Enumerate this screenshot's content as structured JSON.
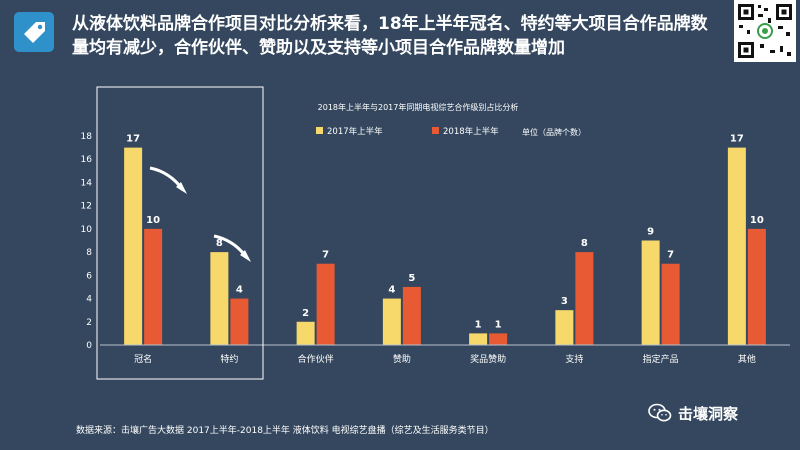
{
  "headline": "从液体饮料品牌合作项目对比分析来看，18年上半年冠名、特约等大项目合作品牌数量均有减少，合作伙伴、赞助以及支持等小项目合作品牌数量增加",
  "source": "数据来源：击壤广告大数据 2017上半年-2018上半年 液体饮料 电视综艺盘播（综艺及生活服务类节目）",
  "brand": {
    "name": "击壤洞察",
    "icon": "wechat-icon"
  },
  "colors": {
    "background": "#34475e",
    "series_2017": "#f6d86b",
    "series_2018": "#e85a33"
  },
  "chart_data": {
    "type": "bar",
    "title": "2018年上半年与2017年同期电视综艺合作级别占比分析",
    "unit_label": "单位（品牌个数）",
    "categories": [
      "冠名",
      "特约",
      "合作伙伴",
      "赞助",
      "奖品赞助",
      "支持",
      "指定产品",
      "其他"
    ],
    "series": [
      {
        "name": "2017年上半年",
        "values": [
          17,
          8,
          2,
          4,
          1,
          3,
          9,
          17
        ]
      },
      {
        "name": "2018年上半年",
        "values": [
          10,
          4,
          7,
          5,
          1,
          8,
          7,
          10
        ]
      }
    ],
    "y_ticks": [
      0,
      2,
      4,
      6,
      8,
      10,
      12,
      14,
      16,
      18
    ],
    "ylim": [
      0,
      18
    ],
    "legend_position": "top",
    "highlighted_categories": [
      "冠名",
      "特约"
    ]
  }
}
